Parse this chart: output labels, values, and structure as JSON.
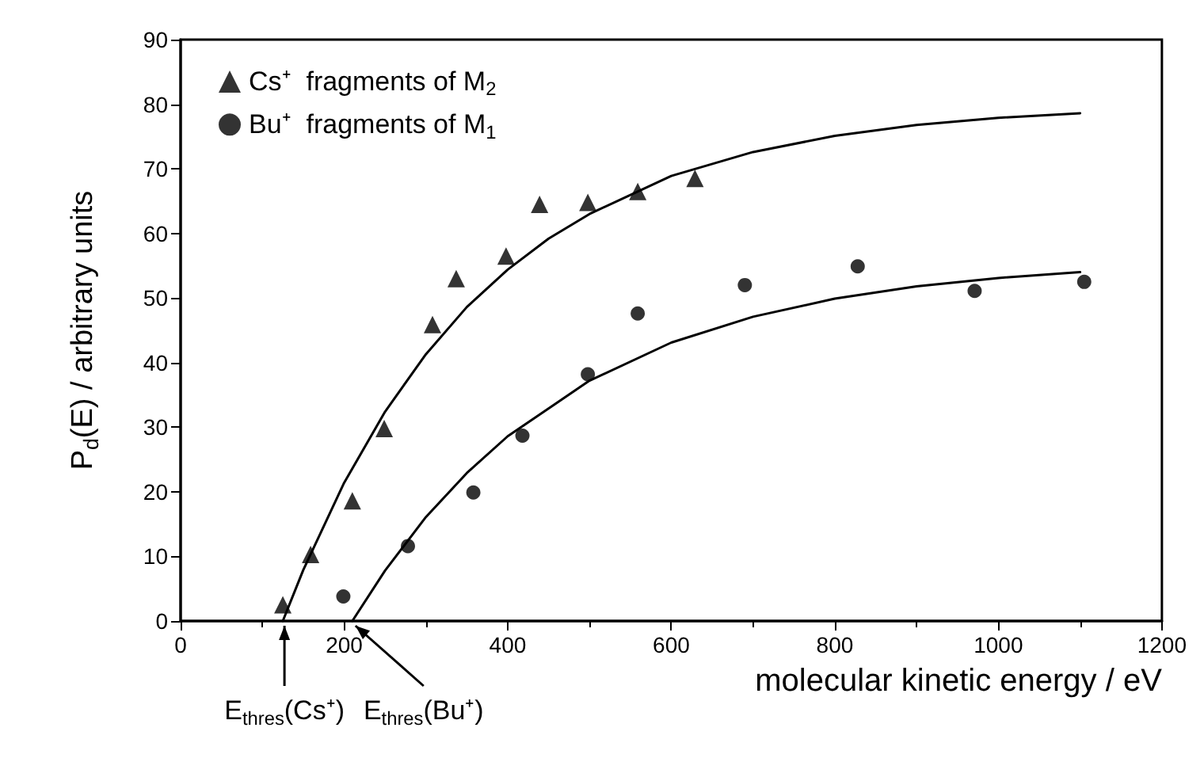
{
  "chart_data": {
    "type": "scatter",
    "xlabel": "molecular kinetic energy / eV",
    "ylabel": "P$_{d}$(E) / arbitrary units",
    "xlim": [
      0,
      1200
    ],
    "xticks": [
      0,
      200,
      400,
      600,
      800,
      1000,
      1200
    ],
    "ylim": [
      0,
      90
    ],
    "yticks": [
      0,
      10,
      20,
      30,
      40,
      50,
      60,
      70,
      80,
      90
    ],
    "grid": false,
    "legend": "top left",
    "series": [
      {
        "name": "Cs⁺  fragments of M$_{2}$",
        "color": "#000000",
        "marker": "triangle",
        "x": [
          125,
          159,
          210,
          249,
          308,
          337,
          398,
          439,
          498,
          559,
          629
        ],
        "values": [
          2.5,
          10.3,
          18.6,
          29.8,
          45.9,
          53,
          56.5,
          64.5,
          64.8,
          66.5,
          68.5
        ]
      },
      {
        "name": "Bu⁺  fragments of M$_{1}$",
        "color": "#000000",
        "marker": "circle",
        "x": [
          199,
          278,
          358,
          418,
          498,
          559,
          690,
          828,
          971,
          1105
        ],
        "values": [
          3.8,
          11.6,
          19.9,
          28.7,
          38.2,
          47.6,
          52,
          54.9,
          51.1,
          52.5
        ]
      },
      {
        "type": "line",
        "color": "#000000",
        "marker": "none",
        "x": [
          125,
          150,
          200,
          250,
          300,
          350,
          400,
          450,
          500,
          600,
          700,
          800,
          900,
          1000,
          1100
        ],
        "values": [
          0,
          7.9,
          21.4,
          32.4,
          41.3,
          48.6,
          54.4,
          59.2,
          63,
          68.9,
          72.6,
          75.1,
          76.8,
          77.9,
          78.6
        ]
      },
      {
        "type": "line",
        "color": "#000000",
        "marker": "none",
        "x": [
          210,
          250,
          300,
          350,
          400,
          500,
          600,
          700,
          800,
          900,
          1000,
          1100
        ],
        "values": [
          0,
          7.8,
          16.1,
          22.9,
          28.6,
          37.2,
          43.1,
          47.1,
          49.9,
          51.8,
          53.1,
          54
        ]
      }
    ],
    "annotations": [
      {
        "text": "E$_{thres}$(Cs⁺)",
        "x": 127,
        "y": 0
      },
      {
        "text": "E$_{thres}$(Bu⁺)",
        "x": 210,
        "y": 0
      }
    ]
  }
}
